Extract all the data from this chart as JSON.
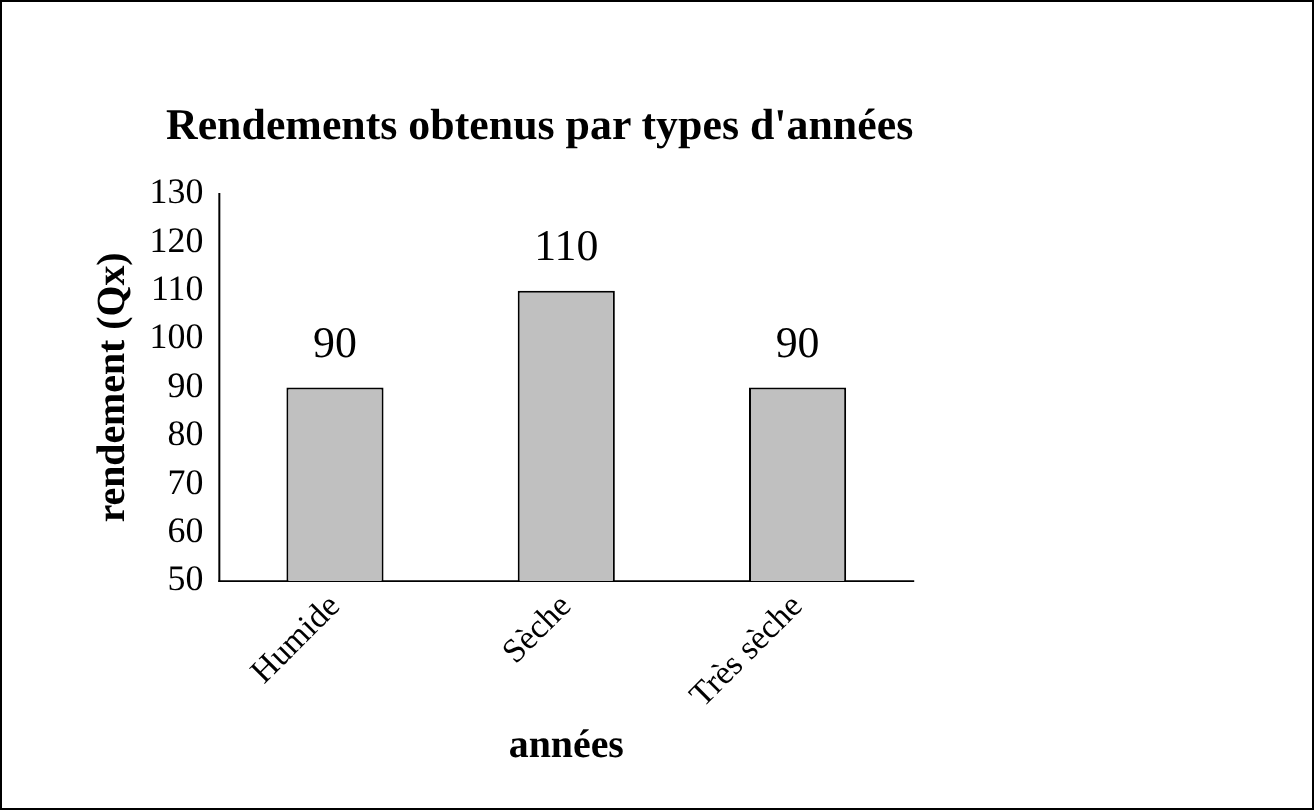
{
  "chart_data": {
    "type": "bar",
    "title": "Rendements obtenus par types d'années",
    "xlabel": "années",
    "ylabel": "rendement (Qx)",
    "categories": [
      "Humide",
      "Sèche",
      "Très sèche"
    ],
    "values": [
      90,
      110,
      90
    ],
    "color": "#c0c0c0",
    "ylim": [
      50,
      130
    ],
    "yticks": [
      50,
      60,
      70,
      80,
      90,
      100,
      110,
      120,
      130
    ],
    "data_labels": true
  }
}
